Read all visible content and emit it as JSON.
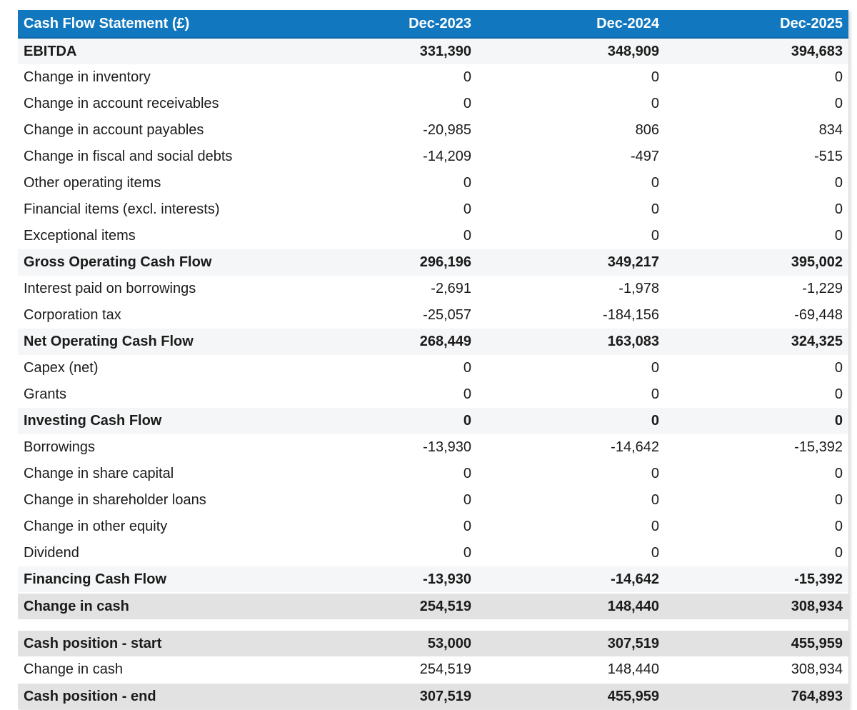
{
  "colors": {
    "header_bg": "#1178c0",
    "header_border": "#0d66a6",
    "header_text": "#ffffff",
    "subtotal_row_bg": "#f5f6f7",
    "highlight_row_bg": "#e2e2e2",
    "body_text": "#1b1b1b"
  },
  "table": {
    "title": "Cash Flow Statement (£)",
    "columns": [
      "Dec-2023",
      "Dec-2024",
      "Dec-2025"
    ],
    "rows": [
      {
        "label": "EBITDA",
        "values": [
          "331,390",
          "348,909",
          "394,683"
        ],
        "style": "subtotal"
      },
      {
        "label": "Change in inventory",
        "values": [
          "0",
          "0",
          "0"
        ],
        "style": "normal"
      },
      {
        "label": "Change in account receivables",
        "values": [
          "0",
          "0",
          "0"
        ],
        "style": "normal"
      },
      {
        "label": "Change in account payables",
        "values": [
          "-20,985",
          "806",
          "834"
        ],
        "style": "normal"
      },
      {
        "label": "Change in fiscal and social debts",
        "values": [
          "-14,209",
          "-497",
          "-515"
        ],
        "style": "normal"
      },
      {
        "label": "Other operating items",
        "values": [
          "0",
          "0",
          "0"
        ],
        "style": "normal"
      },
      {
        "label": "Financial items (excl. interests)",
        "values": [
          "0",
          "0",
          "0"
        ],
        "style": "normal"
      },
      {
        "label": "Exceptional items",
        "values": [
          "0",
          "0",
          "0"
        ],
        "style": "normal"
      },
      {
        "label": "Gross Operating Cash Flow",
        "values": [
          "296,196",
          "349,217",
          "395,002"
        ],
        "style": "subtotal"
      },
      {
        "label": "Interest paid on borrowings",
        "values": [
          "-2,691",
          "-1,978",
          "-1,229"
        ],
        "style": "normal"
      },
      {
        "label": "Corporation tax",
        "values": [
          "-25,057",
          "-184,156",
          "-69,448"
        ],
        "style": "normal"
      },
      {
        "label": "Net Operating Cash Flow",
        "values": [
          "268,449",
          "163,083",
          "324,325"
        ],
        "style": "subtotal"
      },
      {
        "label": "Capex (net)",
        "values": [
          "0",
          "0",
          "0"
        ],
        "style": "normal"
      },
      {
        "label": "Grants",
        "values": [
          "0",
          "0",
          "0"
        ],
        "style": "normal"
      },
      {
        "label": "Investing Cash Flow",
        "values": [
          "0",
          "0",
          "0"
        ],
        "style": "subtotal"
      },
      {
        "label": "Borrowings",
        "values": [
          "-13,930",
          "-14,642",
          "-15,392"
        ],
        "style": "normal"
      },
      {
        "label": "Change in share capital",
        "values": [
          "0",
          "0",
          "0"
        ],
        "style": "normal"
      },
      {
        "label": "Change in shareholder loans",
        "values": [
          "0",
          "0",
          "0"
        ],
        "style": "normal"
      },
      {
        "label": "Change in other equity",
        "values": [
          "0",
          "0",
          "0"
        ],
        "style": "normal"
      },
      {
        "label": "Dividend",
        "values": [
          "0",
          "0",
          "0"
        ],
        "style": "normal"
      },
      {
        "label": "Financing Cash Flow",
        "values": [
          "-13,930",
          "-14,642",
          "-15,392"
        ],
        "style": "subtotal"
      },
      {
        "label": "Change in cash",
        "values": [
          "254,519",
          "148,440",
          "308,934"
        ],
        "style": "highlight"
      },
      {
        "label": "",
        "values": [
          "",
          "",
          ""
        ],
        "style": "spacer"
      },
      {
        "label": "Cash position - start",
        "values": [
          "53,000",
          "307,519",
          "455,959"
        ],
        "style": "highlight"
      },
      {
        "label": "Change in cash",
        "values": [
          "254,519",
          "148,440",
          "308,934"
        ],
        "style": "normal"
      },
      {
        "label": "Cash position - end",
        "values": [
          "307,519",
          "455,959",
          "764,893"
        ],
        "style": "highlight"
      }
    ]
  }
}
